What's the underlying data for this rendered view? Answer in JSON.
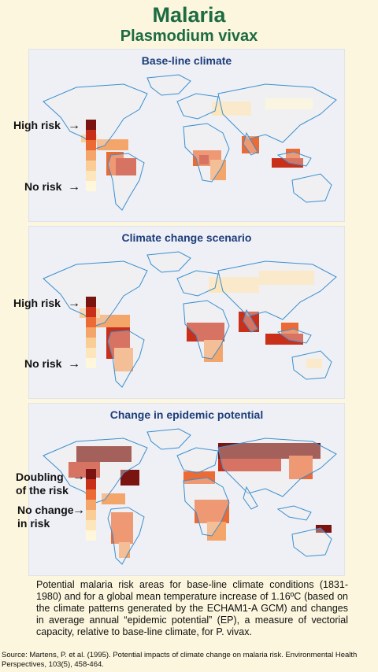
{
  "header": {
    "title": "Malaria",
    "subtitle": "Plasmodium vivax"
  },
  "colors": {
    "background": "#fbf6dd",
    "title": "#1d6b42",
    "panel_title": "#1d3e7a",
    "map_background": "#eef0f6",
    "coastline": "#3b8fd0",
    "land": "#f3f2ec",
    "risk_scale": [
      "#7a1410",
      "#c8301a",
      "#ec6a34",
      "#f4a56a",
      "#f9cd95",
      "#fde6bb",
      "#fef7dc"
    ]
  },
  "panels": [
    {
      "title": "Base-line climate",
      "legend_top": "High risk",
      "legend_bottom": "No risk"
    },
    {
      "title": "Climate change scenario",
      "legend_top": "High risk",
      "legend_bottom": "No risk"
    },
    {
      "title": "Change in epidemic potential",
      "legend_top": "Doubling of the risk",
      "legend_bottom": "No change in risk"
    }
  ],
  "caption": "Potential malaria risk areas for base-line climate conditions (1831-1980) and for a global mean temperature increase of 1.16ºC (based on the climate patterns generated by the ECHAM1-A GCM) and changes in average annual “epidemic potential” (EP), a measure of vectorial capacity, relative to base-line climate, for P. vivax.",
  "source": "Source: Martens, P. et al. (1995). Potential impacts of climate change on malaria risk. Environmental Health Perspectives, 103(5), 458-464."
}
